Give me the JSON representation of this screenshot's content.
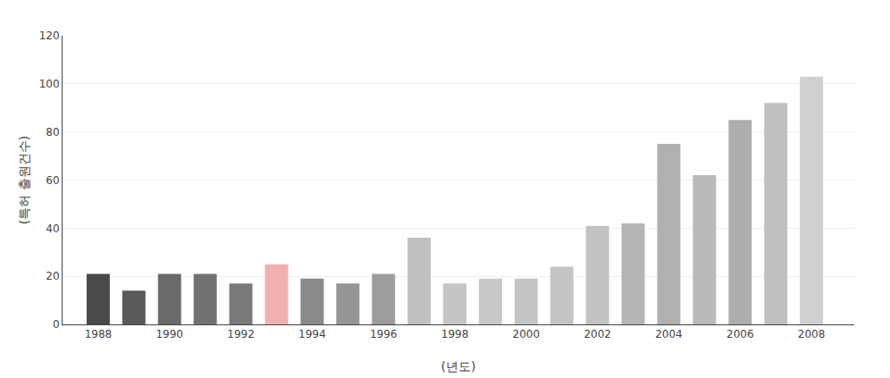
{
  "chart_data": {
    "type": "bar",
    "x": [
      1988,
      1989,
      1990,
      1991,
      1992,
      1993,
      1994,
      1995,
      1996,
      1997,
      1998,
      1999,
      2000,
      2001,
      2002,
      2003,
      2004,
      2005,
      2006,
      2007,
      2008
    ],
    "values": [
      21,
      14,
      21,
      21,
      17,
      25,
      19,
      17,
      21,
      36,
      17,
      19,
      19,
      24,
      41,
      42,
      75,
      62,
      85,
      92,
      103
    ],
    "colors": [
      "#4a4a4a",
      "#5a5a5a",
      "#6a6a6a",
      "#727272",
      "#7a7a7a",
      "#f0b0b0",
      "#8a8a8a",
      "#959595",
      "#9d9d9d",
      "#c0c0c0",
      "#c5c5c5",
      "#c8c8c8",
      "#c5c5c5",
      "#c5c5c5",
      "#c2c2c2",
      "#b5b5b5",
      "#b0b0b0",
      "#bababa",
      "#adadad",
      "#c0c0c0",
      "#d0d0d0"
    ],
    "xlabel": "(년도)",
    "ylabel": "(특허 출원건수)",
    "xlim": [
      1987.0,
      2009.2
    ],
    "xticks": [
      1988,
      1990,
      1992,
      1994,
      1996,
      1998,
      2000,
      2002,
      2004,
      2006,
      2008
    ],
    "ylim": [
      0,
      120
    ],
    "yticks": [
      0,
      20,
      40,
      60,
      80,
      100,
      120
    ],
    "grid": true
  }
}
